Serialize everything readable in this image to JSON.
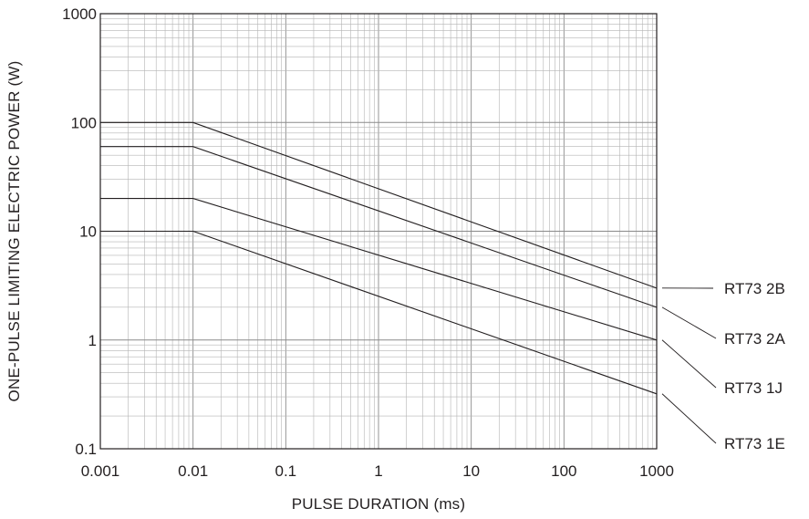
{
  "chart_data": {
    "type": "line",
    "xlabel": "PULSE DURATION (ms)",
    "ylabel": "ONE-PULSE LIMITING ELECTRIC POWER (W)",
    "xscale": "log",
    "yscale": "log",
    "xlim": [
      0.001,
      1000
    ],
    "ylim": [
      0.1,
      1000
    ],
    "grid": true,
    "legend": "right",
    "x_ticks": [
      "0.001",
      "0.01",
      "0.1",
      "1",
      "10",
      "100",
      "1000"
    ],
    "y_ticks": [
      "0.1",
      "1",
      "10",
      "100",
      "1000"
    ],
    "series": [
      {
        "name": "RT73 2B",
        "x": [
          0.001,
          0.01,
          1000
        ],
        "y": [
          100,
          100,
          3
        ]
      },
      {
        "name": "RT73 2A",
        "x": [
          0.001,
          0.01,
          1000
        ],
        "y": [
          60,
          60,
          2
        ]
      },
      {
        "name": "RT73 1J",
        "x": [
          0.001,
          0.01,
          1000
        ],
        "y": [
          20,
          20,
          1
        ]
      },
      {
        "name": "RT73 1E",
        "x": [
          0.001,
          0.01,
          1000
        ],
        "y": [
          10,
          10,
          0.32
        ]
      }
    ]
  }
}
